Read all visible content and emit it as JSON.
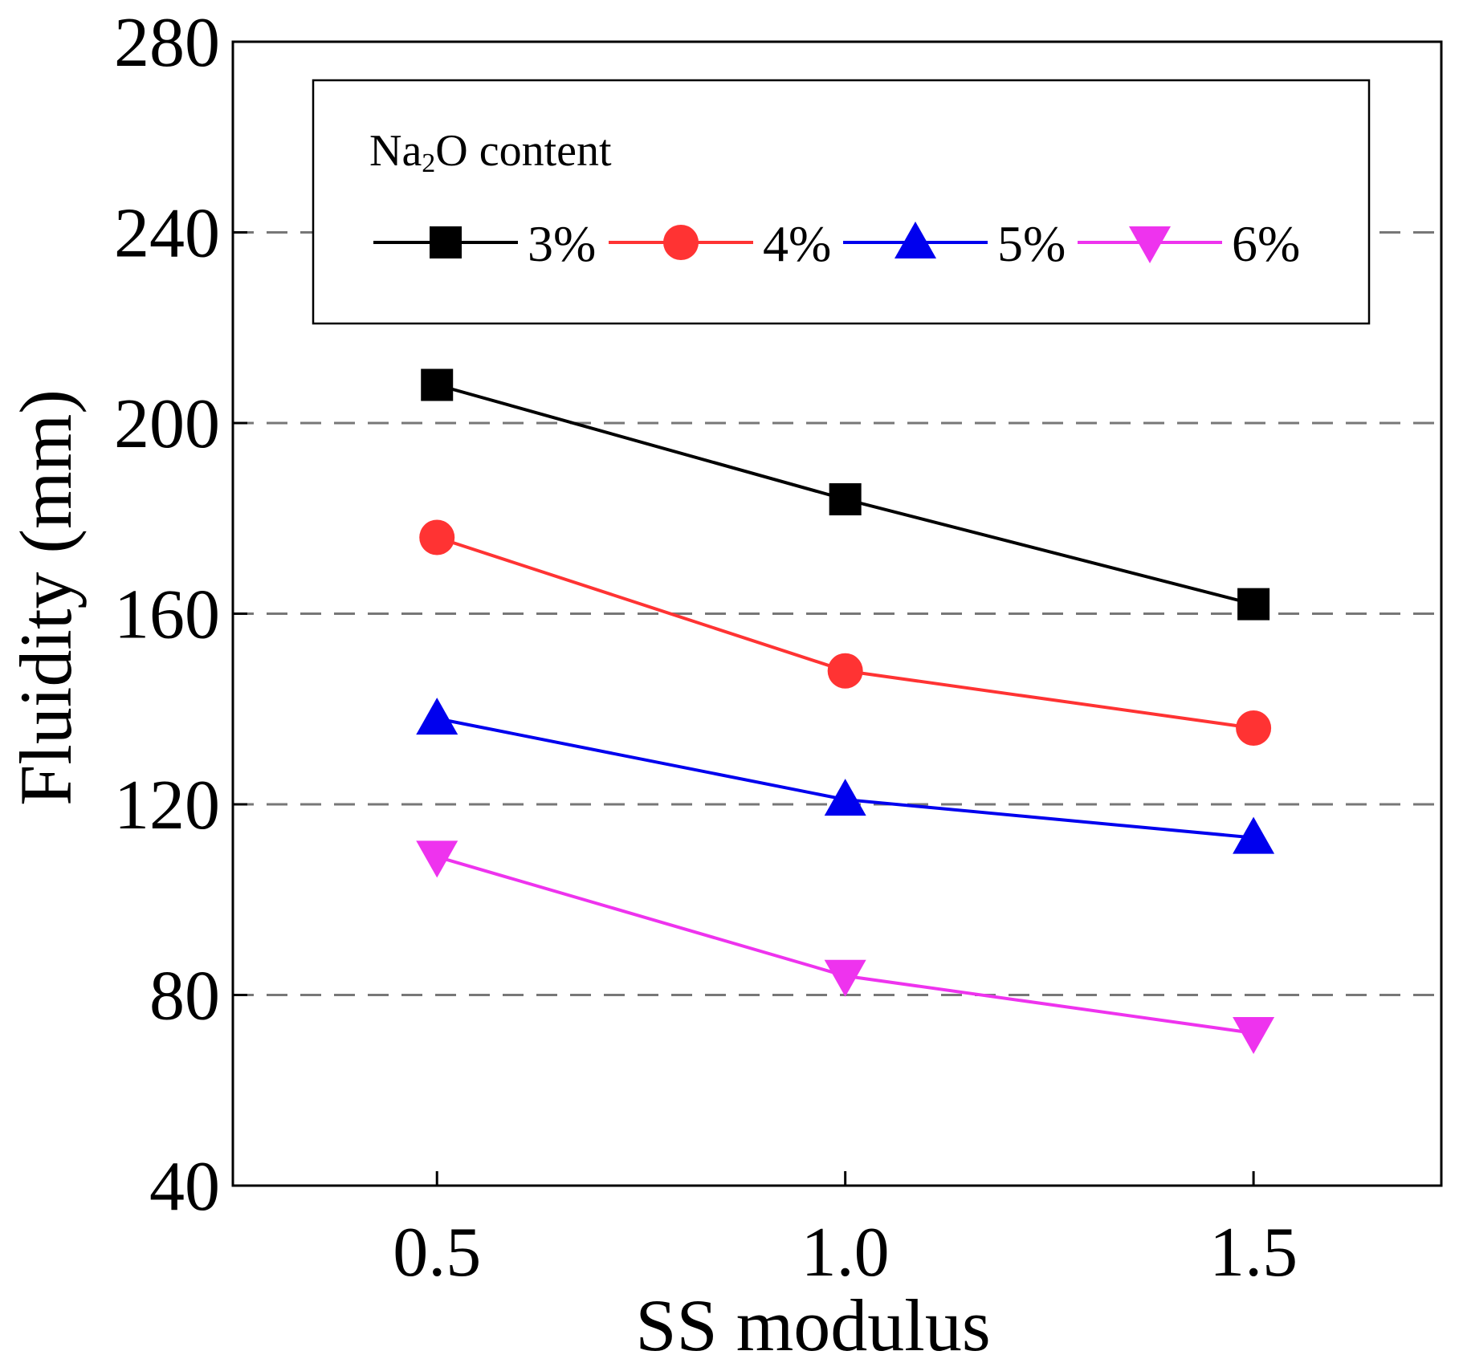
{
  "chart_data": {
    "type": "line",
    "title": "",
    "xlabel": "SS modulus",
    "ylabel": "Fluidity (mm)",
    "x": [
      0.5,
      1.0,
      1.5
    ],
    "x_tick_labels": [
      "0.5",
      "1.0",
      "1.5"
    ],
    "xlim": [
      0.25,
      1.73
    ],
    "ylim": [
      40,
      280
    ],
    "y_ticks": [
      40,
      80,
      120,
      160,
      200,
      240,
      280
    ],
    "grid": "horizontal dashed",
    "legend": {
      "title_main": "Na",
      "title_sub": "2",
      "title_rest": "O content",
      "placement": "top"
    },
    "series": [
      {
        "name": "3%",
        "color": "#000000",
        "marker": "square",
        "values": [
          208,
          184,
          162
        ]
      },
      {
        "name": "4%",
        "color": "#ff3333",
        "marker": "circle",
        "values": [
          176,
          148,
          136
        ]
      },
      {
        "name": "5%",
        "color": "#0000ee",
        "marker": "triangle-up",
        "values": [
          138,
          121,
          113
        ]
      },
      {
        "name": "6%",
        "color": "#ee33ee",
        "marker": "triangle-down",
        "values": [
          109,
          84,
          72
        ]
      }
    ]
  }
}
